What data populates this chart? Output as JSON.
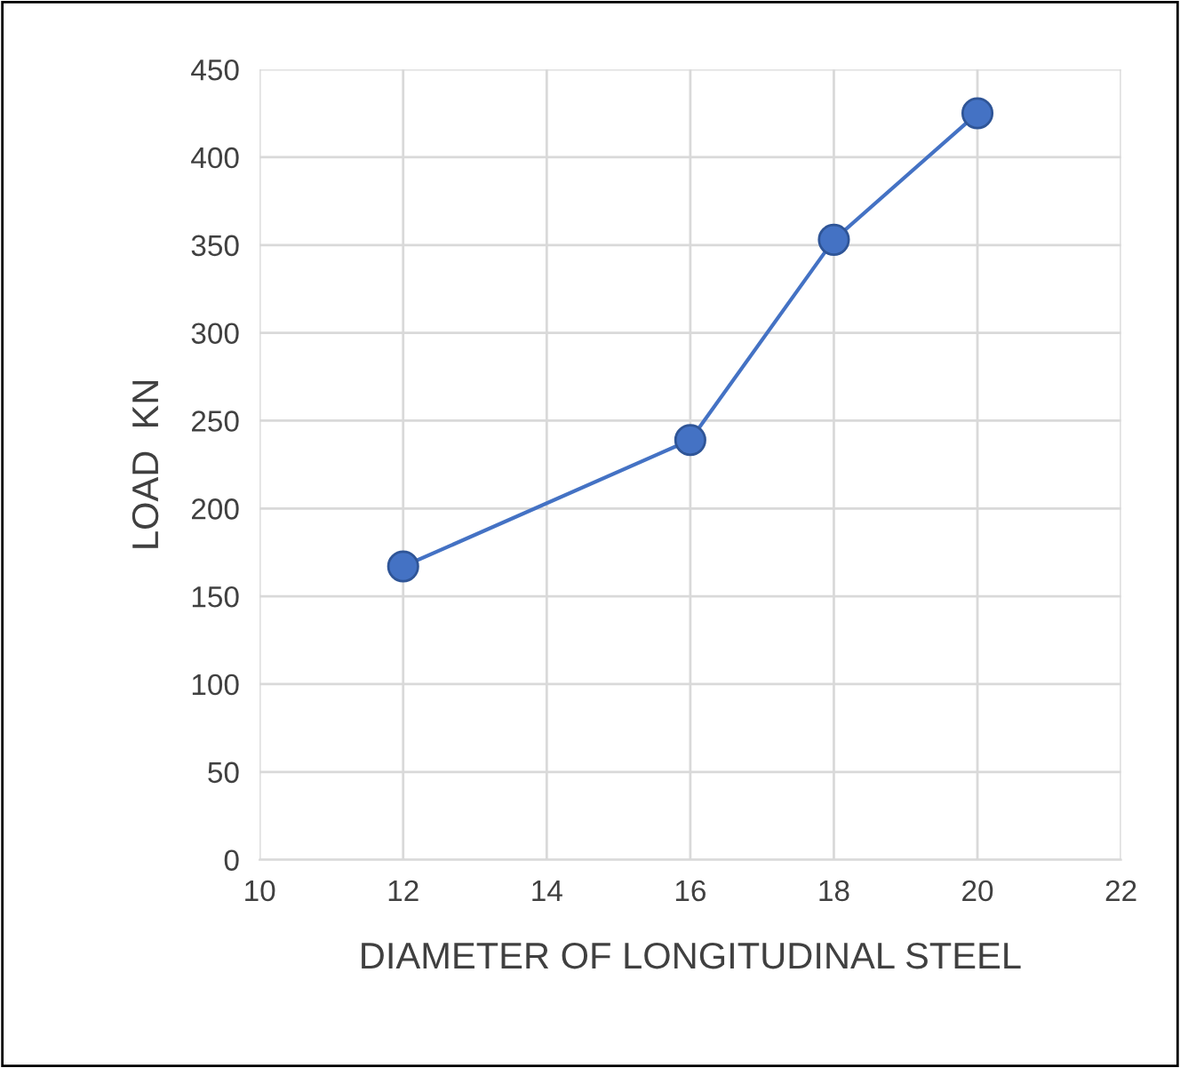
{
  "chart_data": {
    "type": "line",
    "xlabel": "DIAMETER OF LONGITUDINAL STEEL",
    "ylabel": "LOAD  KN",
    "x": [
      12,
      16,
      18,
      20
    ],
    "series": [
      {
        "color": "#4472c4",
        "values": [
          167,
          239,
          353,
          425
        ]
      }
    ],
    "xlim": [
      10,
      22
    ],
    "xticks": [
      10,
      12,
      14,
      16,
      18,
      20,
      22
    ],
    "ylim": [
      0,
      450
    ],
    "yticks": [
      0,
      50,
      100,
      150,
      200,
      250,
      300,
      350,
      400,
      450
    ],
    "grid": true,
    "marker": "circle",
    "line_style": "solid"
  }
}
